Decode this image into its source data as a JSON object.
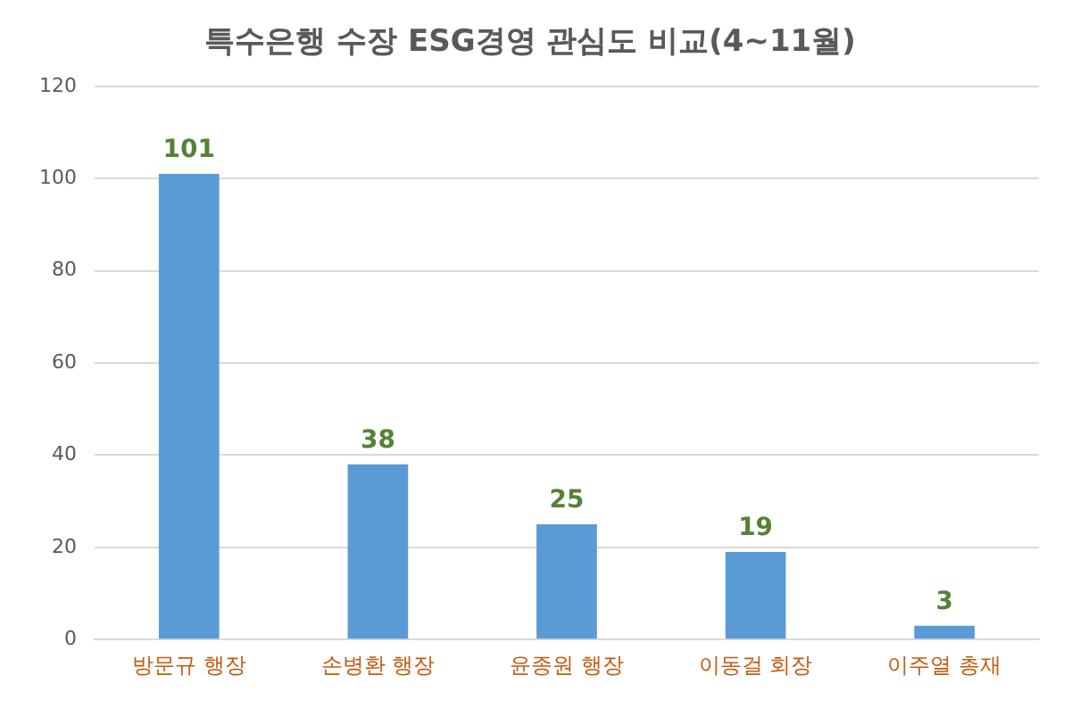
{
  "chart_data": {
    "type": "bar",
    "title": "특수은행 수장 ESG경영 관심도 비교(4~11월)",
    "categories": [
      "방문규 행장",
      "손병환 행장",
      "윤종원 행장",
      "이동걸 회장",
      "이주열 총재"
    ],
    "values": [
      101,
      38,
      25,
      19,
      3
    ],
    "color": "#5b9bd5",
    "ylim": [
      0,
      120
    ],
    "yticks": [
      0,
      20,
      40,
      60,
      80,
      100,
      120
    ],
    "grid": "y",
    "data_labels": true,
    "legend": false
  }
}
